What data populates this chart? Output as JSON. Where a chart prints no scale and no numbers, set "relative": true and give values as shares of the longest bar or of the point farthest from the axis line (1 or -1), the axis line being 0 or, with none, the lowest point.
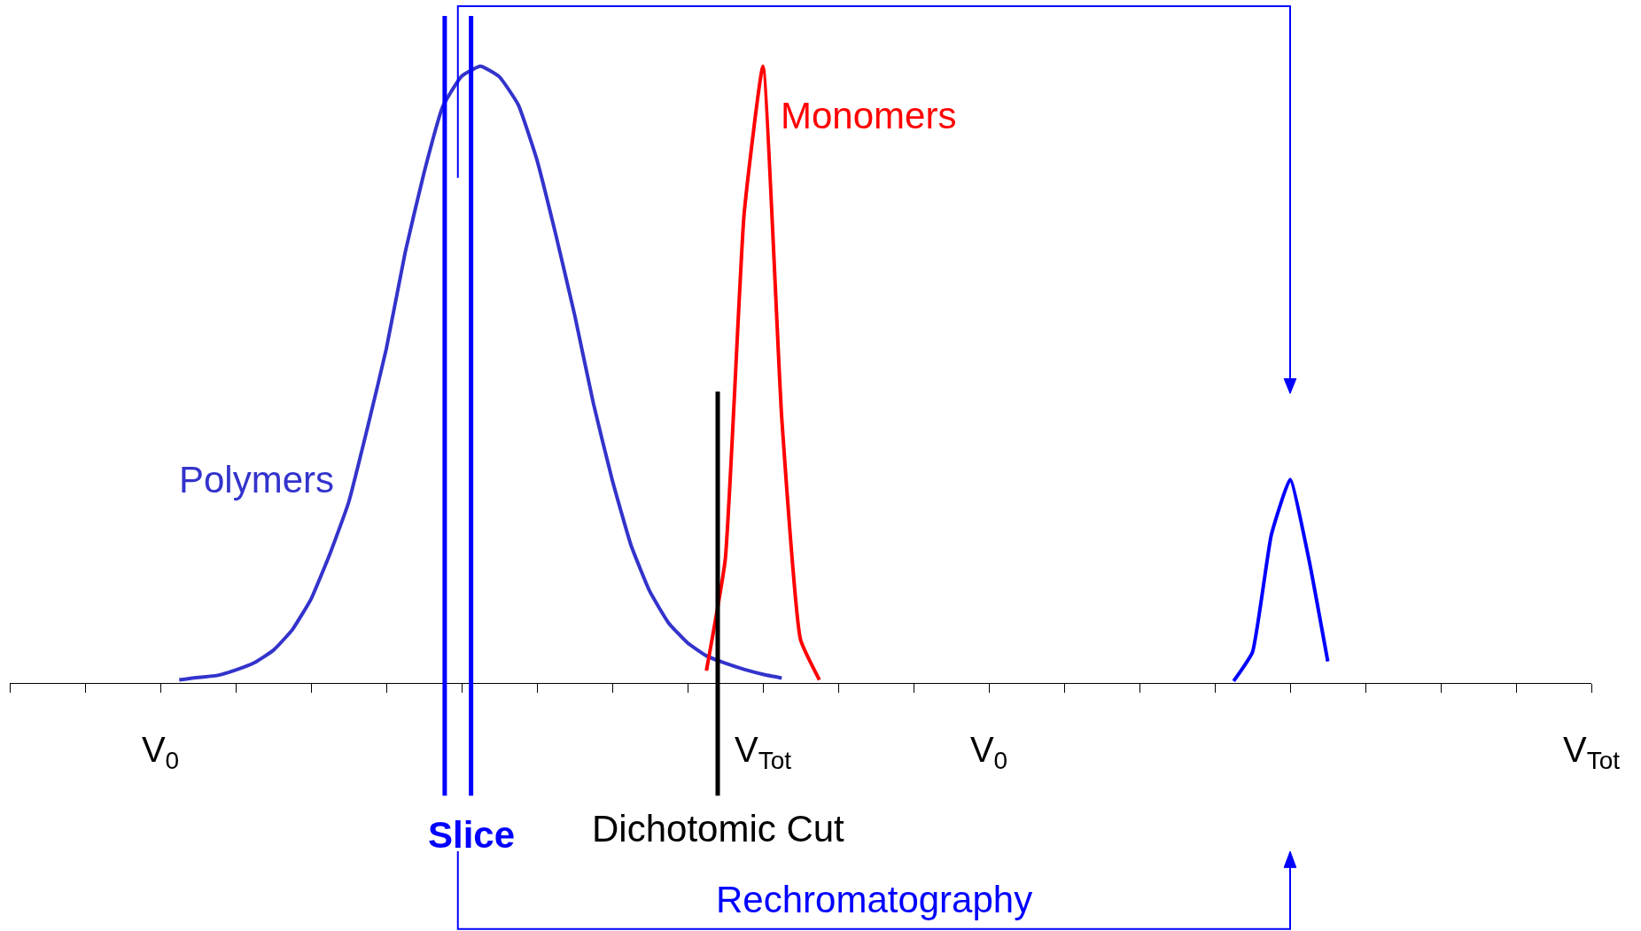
{
  "chart_data": {
    "type": "line",
    "relative": true,
    "categories": [
      null,
      null,
      null,
      null,
      null,
      null,
      null,
      null,
      "V$_{0}$",
      null,
      null,
      null,
      null,
      null,
      null,
      null,
      null,
      null,
      null,
      null,
      null,
      null,
      null,
      null,
      null,
      null,
      null,
      null,
      null,
      null,
      null,
      null,
      null,
      null,
      null,
      null,
      null,
      null,
      null,
      null,
      "V$_{Tot}$",
      null,
      null,
      null,
      null,
      null,
      null,
      null,
      null,
      null,
      null,
      null,
      "V$_{0}$",
      null,
      null,
      null,
      null,
      null,
      null,
      null,
      null,
      null,
      null,
      null,
      null,
      null,
      null,
      null,
      null,
      null,
      null,
      null,
      null,
      null,
      null,
      null,
      null,
      null,
      null,
      null,
      null,
      null,
      null,
      null,
      "V$_{Tot}$"
    ],
    "series": [
      {
        "name": "Polymers",
        "color": "#3333cc",
        "values": [
          null,
          null,
          null,
          null,
          null,
          null,
          null,
          null,
          null,
          0.005,
          0.009,
          0.012,
          0.021,
          0.033,
          0.053,
          0.086,
          0.136,
          0.209,
          0.293,
          0.414,
          0.542,
          0.698,
          0.827,
          0.935,
          0.984,
          1,
          0.983,
          0.938,
          0.848,
          0.727,
          0.597,
          0.453,
          0.329,
          0.223,
          0.148,
          0.097,
          0.065,
          0.044,
          0.032,
          0.022,
          0.014,
          0.008,
          null,
          null,
          null,
          null,
          null,
          null,
          null,
          null,
          null,
          null,
          null,
          null,
          null,
          null,
          null,
          null,
          null,
          null,
          null,
          null,
          null,
          null,
          null,
          null,
          null,
          null,
          null,
          null,
          null,
          null,
          null,
          null,
          null,
          null,
          null,
          null,
          null,
          null,
          null,
          null,
          null,
          null,
          null
        ]
      },
      {
        "name": "Monomers",
        "color": "#ff0000",
        "values": [
          null,
          null,
          null,
          null,
          null,
          null,
          null,
          null,
          null,
          null,
          null,
          null,
          null,
          null,
          null,
          null,
          null,
          null,
          null,
          null,
          null,
          null,
          null,
          null,
          null,
          null,
          null,
          null,
          null,
          null,
          null,
          null,
          null,
          null,
          null,
          null,
          null,
          0.02,
          0.2,
          0.76,
          1,
          0.43,
          0.07,
          0.005,
          null,
          null,
          null,
          null,
          null,
          null,
          null,
          null,
          null,
          null,
          null,
          null,
          null,
          null,
          null,
          null,
          null,
          null,
          null,
          null,
          null,
          null,
          null,
          null,
          null,
          null,
          null,
          null,
          null,
          null,
          null,
          null,
          null,
          null,
          null,
          null,
          null,
          null,
          null,
          null,
          null
        ]
      },
      {
        "color": "#0000ff",
        "values": [
          null,
          null,
          null,
          null,
          null,
          null,
          null,
          null,
          null,
          null,
          null,
          null,
          null,
          null,
          null,
          null,
          null,
          null,
          null,
          null,
          null,
          null,
          null,
          null,
          null,
          null,
          null,
          null,
          null,
          null,
          null,
          null,
          null,
          null,
          null,
          null,
          null,
          null,
          null,
          null,
          null,
          null,
          null,
          null,
          null,
          null,
          null,
          null,
          null,
          null,
          null,
          null,
          null,
          null,
          null,
          null,
          null,
          null,
          null,
          null,
          null,
          null,
          null,
          null,
          null,
          0.003,
          0.05,
          0.24,
          0.33,
          0.2,
          0.035,
          null,
          null,
          null,
          null,
          null,
          null,
          null,
          null,
          null,
          null,
          null,
          null,
          null,
          null
        ]
      }
    ],
    "annotations": [
      "Slice",
      "Dichotomic Cut",
      "Rechromatography"
    ]
  }
}
